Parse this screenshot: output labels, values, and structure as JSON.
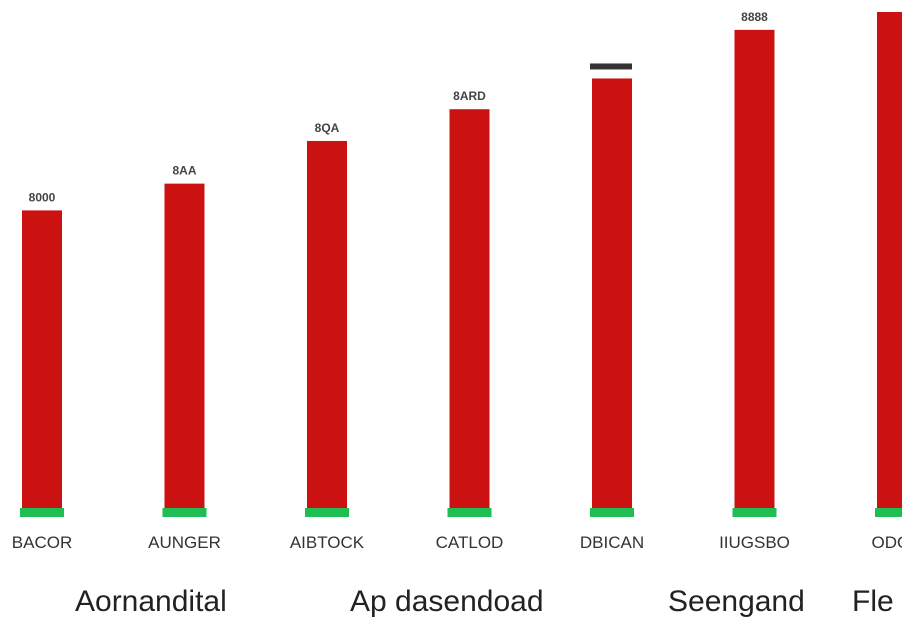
{
  "chart_data": {
    "type": "bar",
    "categories": [
      "BACOR",
      "AUNGER",
      "AIBTOCK",
      "CATLOD",
      "DBICAN",
      "IIUGSBO",
      "ODOR"
    ],
    "values": [
      300,
      327,
      370,
      402,
      433,
      482,
      500
    ],
    "value_labels": [
      "8000",
      "8AA",
      "8QA",
      "8ARD",
      "",
      "8888",
      ""
    ],
    "ylim": [
      0,
      500
    ],
    "title": "",
    "xlabel": "",
    "ylabel": "",
    "grid": false,
    "legend": "none",
    "colors": {
      "bar": "#cc1111",
      "base": "#1fbe55"
    }
  },
  "footer_labels": [
    "Aornandital",
    "Ap dasendoad",
    "Seengand",
    "Fle"
  ]
}
